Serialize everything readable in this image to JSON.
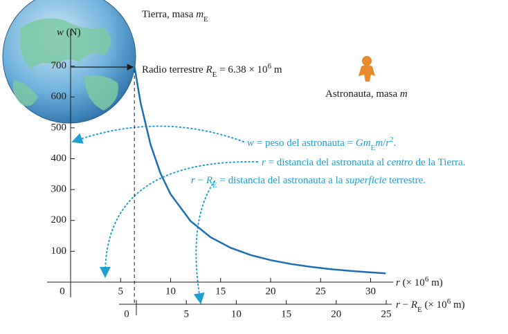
{
  "chart_data": {
    "type": "line",
    "earth_label": [
      {
        "t": "Tierra, masa "
      },
      {
        "t": "m",
        "s": "i"
      },
      {
        "t": "E",
        "s": "sub"
      }
    ],
    "y_label": [
      {
        "t": "w",
        "s": "i"
      },
      {
        "t": " (N)"
      }
    ],
    "radius_label": [
      {
        "t": "Radio terrestre "
      },
      {
        "t": "R",
        "s": "i"
      },
      {
        "t": "E",
        "s": "sub"
      },
      {
        "t": " = "
      },
      {
        "t": 6.38
      },
      {
        "t": " × 10"
      },
      {
        "t": "6",
        "s": "sup"
      },
      {
        "t": " m"
      }
    ],
    "radius": 6.38,
    "astronaut_label": [
      {
        "t": "Astronauta, masa "
      },
      {
        "t": "m",
        "s": "i"
      }
    ],
    "annotations": [
      [
        {
          "t": "w",
          "s": "i"
        },
        {
          "t": " = peso del astronauta = "
        },
        {
          "t": "Gm",
          "s": "i"
        },
        {
          "t": "E",
          "s": "sub"
        },
        {
          "t": "m",
          "s": "i"
        },
        {
          "t": "/"
        },
        {
          "t": "r",
          "s": "i"
        },
        {
          "t": "2",
          "s": "sup"
        },
        {
          "t": "."
        }
      ],
      [
        {
          "t": "r",
          "s": "i"
        },
        {
          "t": " = distancia del astronauta al "
        },
        {
          "t": "centro",
          "s": "i"
        },
        {
          "t": " de la Tierra."
        }
      ],
      [
        {
          "t": "r",
          "s": "i"
        },
        {
          "t": " − "
        },
        {
          "t": "R",
          "s": "i"
        },
        {
          "t": "E",
          "s": "sub"
        },
        {
          "t": " = distancia del astronauta a la "
        },
        {
          "t": "superficie",
          "s": "i"
        },
        {
          "t": " terrestre."
        }
      ]
    ],
    "x_label": [
      {
        "t": "r",
        "s": "i"
      },
      {
        "t": " (× 10"
      },
      {
        "t": "6",
        "s": "sup"
      },
      {
        "t": " m)"
      }
    ],
    "x2_label": [
      {
        "t": "r",
        "s": "i"
      },
      {
        "t": " − "
      },
      {
        "t": "R",
        "s": "i"
      },
      {
        "t": "E",
        "s": "sub"
      },
      {
        "t": " (× 10"
      },
      {
        "t": "6",
        "s": "sup"
      },
      {
        "t": " m)"
      }
    ],
    "x": [
      6.38,
      7,
      8,
      9,
      10,
      12,
      14,
      16,
      18,
      20,
      22,
      24,
      26,
      28,
      30,
      31.5
    ],
    "series": [
      {
        "color": "#1a6eb5",
        "values": [
          700,
          581.5,
          445.2,
          351.8,
          284.9,
          197.9,
          145.4,
          111.3,
          87.9,
          71.2,
          58.9,
          49.5,
          42.1,
          36.3,
          31.7,
          28.7
        ]
      }
    ],
    "xlim": [
      0,
      32
    ],
    "xticks": [
      0,
      5,
      10,
      15,
      20,
      25,
      30
    ],
    "ylim": [
      0,
      800
    ],
    "yticks": [
      100,
      200,
      300,
      400,
      500,
      600,
      700
    ],
    "x2lim": [
      0,
      25
    ],
    "x2ticks": [
      0,
      5,
      10,
      15,
      20,
      25
    ]
  }
}
